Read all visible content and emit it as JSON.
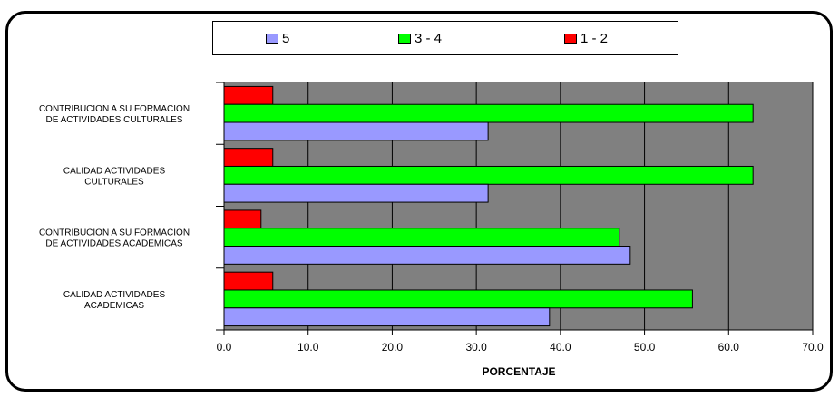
{
  "chart_data": {
    "type": "bar",
    "orientation": "horizontal",
    "xlabel": "PORCENTAJE",
    "xlim": [
      0,
      70
    ],
    "x_ticks": [
      "0.0",
      "10.0",
      "20.0",
      "30.0",
      "40.0",
      "50.0",
      "60.0",
      "70.0"
    ],
    "grid": true,
    "legend_position": "top",
    "categories": [
      [
        "CONTRIBUCION A SU FORMACION",
        "DE ACTIVIDADES CULTURALES"
      ],
      [
        "CALIDAD ACTIVIDADES",
        "CULTURALES"
      ],
      [
        "CONTRIBUCION A SU FORMACION",
        "DE ACTIVIDADES ACADEMICAS"
      ],
      [
        "CALIDAD ACTIVIDADES",
        "ACADEMICAS"
      ]
    ],
    "series": [
      {
        "name": "1 - 2",
        "color": "#ff0000",
        "values": [
          5.8,
          5.8,
          4.4,
          5.8
        ]
      },
      {
        "name": "3 - 4",
        "color": "#00ff00",
        "values": [
          62.9,
          62.9,
          47.0,
          55.7
        ]
      },
      {
        "name": "5",
        "color": "#9999ff",
        "values": [
          31.4,
          31.4,
          48.3,
          38.7
        ]
      }
    ],
    "legend_order": [
      "5",
      "3 - 4",
      "1 - 2"
    ],
    "plot_background": "#808080"
  }
}
